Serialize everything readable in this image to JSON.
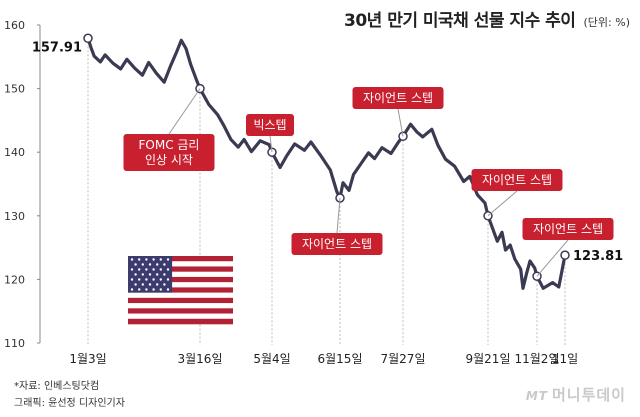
{
  "title": "30년 만기 미국채 선물 지수 추이",
  "unit": "(단위: %)",
  "source": "*자료: 인베스팅닷컴",
  "graphic": "그래픽: 윤선정 디자인기자",
  "watermark": {
    "mt": "MT",
    "name": "머니투데이"
  },
  "chart_data": {
    "type": "line",
    "title": "30년 만기 미국채 선물 지수 추이",
    "unit": "%",
    "ylim": [
      110,
      160
    ],
    "yticks": [
      110,
      120,
      130,
      140,
      150,
      160
    ],
    "xticks": [
      "1월3일",
      "3월16일",
      "5월4일",
      "6월15일",
      "7월27일",
      "9월21일",
      "11월2일",
      "11일"
    ],
    "grid": false,
    "line_color": "#3a3a52",
    "marker_line_color": "#bbbbbb",
    "callout_color": "#c8202f",
    "series": [
      {
        "points": [
          [
            "1월3일",
            157.91
          ],
          [
            "1월5일",
            156.4
          ],
          [
            "1월7일",
            155.1
          ],
          [
            "1월11일",
            154.2
          ],
          [
            "1월14일",
            155.3
          ],
          [
            "1월19일",
            154.0
          ],
          [
            "1월24일",
            153.1
          ],
          [
            "1월28일",
            154.6
          ],
          [
            "2월2일",
            153.2
          ],
          [
            "2월7일",
            152.1
          ],
          [
            "2월11일",
            154.1
          ],
          [
            "2월16일",
            152.4
          ],
          [
            "2월21일",
            151.0
          ],
          [
            "2월25일",
            153.5
          ],
          [
            "3월1일",
            155.8
          ],
          [
            "3월4일",
            157.6
          ],
          [
            "3월7일",
            156.3
          ],
          [
            "3월10일",
            153.8
          ],
          [
            "3월14일",
            151.2
          ],
          [
            "3월16일",
            150.0
          ],
          [
            "3월22일",
            147.5
          ],
          [
            "3월28일",
            145.9
          ],
          [
            "4월1일",
            144.3
          ],
          [
            "4월6일",
            142.0
          ],
          [
            "4월11일",
            140.8
          ],
          [
            "4월15일",
            142.0
          ],
          [
            "4월20일",
            140.1
          ],
          [
            "4월26일",
            141.8
          ],
          [
            "5월2일",
            141.2
          ],
          [
            "5월4일",
            140.0
          ],
          [
            "5월9일",
            137.6
          ],
          [
            "5월13일",
            139.4
          ],
          [
            "5월18일",
            141.3
          ],
          [
            "5월24일",
            140.3
          ],
          [
            "5월28일",
            141.6
          ],
          [
            "6월3일",
            139.5
          ],
          [
            "6월9일",
            137.2
          ],
          [
            "6월13일",
            133.8
          ],
          [
            "6월15일",
            132.8
          ],
          [
            "6월17일",
            135.2
          ],
          [
            "6월21일",
            134.0
          ],
          [
            "6월24일",
            136.5
          ],
          [
            "6월29일",
            138.2
          ],
          [
            "7월4일",
            139.9
          ],
          [
            "7월8일",
            139.0
          ],
          [
            "7월13일",
            140.7
          ],
          [
            "7월19일",
            139.8
          ],
          [
            "7월24일",
            141.6
          ],
          [
            "7월27일",
            142.5
          ],
          [
            "8월1일",
            144.4
          ],
          [
            "8월5일",
            143.2
          ],
          [
            "8월9일",
            142.4
          ],
          [
            "8월15일",
            143.6
          ],
          [
            "8월19일",
            141.1
          ],
          [
            "8월24일",
            138.9
          ],
          [
            "8월30일",
            137.8
          ],
          [
            "9월5일",
            135.4
          ],
          [
            "9월9일",
            136.2
          ],
          [
            "9월14일",
            133.3
          ],
          [
            "9월19일",
            132.0
          ],
          [
            "9월21일",
            130.0
          ],
          [
            "9월26일",
            127.5
          ],
          [
            "9월29일",
            126.0
          ],
          [
            "10월3일",
            127.4
          ],
          [
            "10월6일",
            124.6
          ],
          [
            "10월10일",
            125.4
          ],
          [
            "10월14일",
            123.2
          ],
          [
            "10월19일",
            121.6
          ],
          [
            "10월21일",
            118.6
          ],
          [
            "10월24일",
            120.9
          ],
          [
            "10월27일",
            122.9
          ],
          [
            "10월31일",
            121.8
          ],
          [
            "11월2일",
            120.5
          ],
          [
            "11월4일",
            118.6
          ],
          [
            "11월7일",
            119.5
          ],
          [
            "11월9일",
            118.8
          ],
          [
            "11월11일",
            123.81
          ]
        ]
      }
    ],
    "value_labels": [
      {
        "x": "1월3일",
        "y": 157.91,
        "text": "157.91"
      },
      {
        "x": "11월11일",
        "y": 123.81,
        "text": "123.81"
      }
    ],
    "annotations": [
      {
        "x": "3월16일",
        "y": 150.0,
        "lines": [
          "FOMC 금리",
          "인상 시작"
        ],
        "place": "below"
      },
      {
        "x": "5월4일",
        "y": 140.0,
        "lines": [
          "빅스텝"
        ],
        "place": "above"
      },
      {
        "x": "6월15일",
        "y": 132.8,
        "lines": [
          "자이언트 스텝"
        ],
        "place": "below"
      },
      {
        "x": "7월27일",
        "y": 142.5,
        "lines": [
          "자이언트 스텝"
        ],
        "place": "above"
      },
      {
        "x": "9월21일",
        "y": 130.0,
        "lines": [
          "자이언트 스텝"
        ],
        "place": "above"
      },
      {
        "x": "11월2일",
        "y": 120.5,
        "lines": [
          "자이언트 스텝"
        ],
        "place": "above"
      }
    ],
    "flag": "us-flag"
  }
}
